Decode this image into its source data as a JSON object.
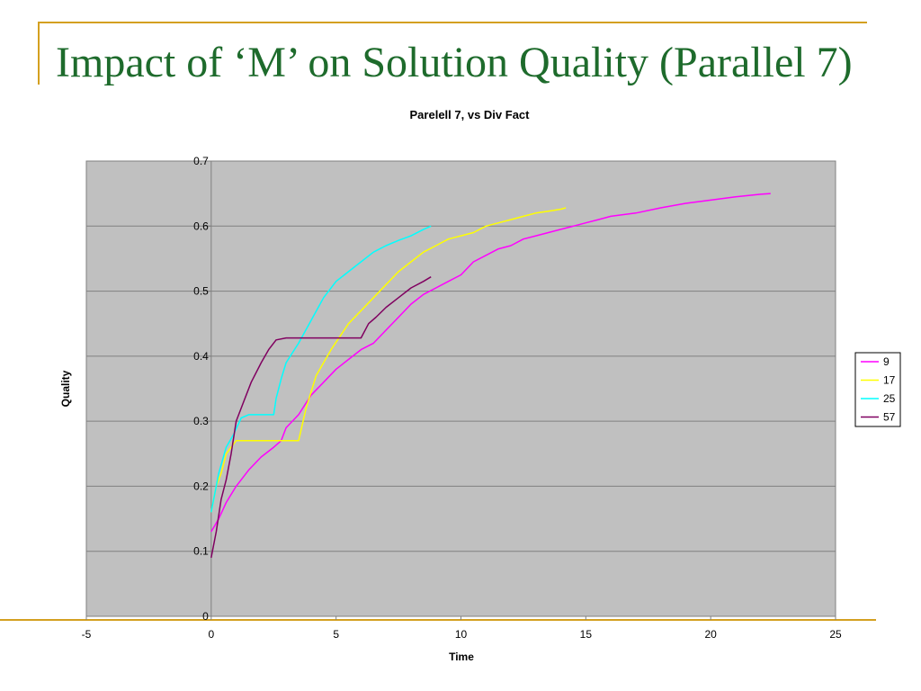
{
  "slide": {
    "title": "Impact of ‘M’ on Solution Quality (Parallel 7)"
  },
  "colors": {
    "accent_rule": "#d4a020",
    "title_text": "#1e6b2c",
    "plot_background": "#c0c0c0"
  },
  "chart_data": {
    "type": "line",
    "title": "Parelell 7, vs Div Fact",
    "xlabel": "Time",
    "ylabel": "Quality",
    "xlim": [
      -5,
      25
    ],
    "ylim": [
      0,
      0.7
    ],
    "x_ticks": [
      -5,
      0,
      5,
      10,
      15,
      20,
      25
    ],
    "y_ticks": [
      0,
      0.1,
      0.2,
      0.3,
      0.4,
      0.5,
      0.6,
      0.7
    ],
    "x_tick_labels": [
      "-5",
      "0",
      "5",
      "10",
      "15",
      "20",
      "25"
    ],
    "y_tick_labels": [
      "0",
      "0.1",
      "0.2",
      "0.3",
      "0.4",
      "0.5",
      "0.6",
      "0.7"
    ],
    "grid": "horizontal",
    "legend_position": "right",
    "series": [
      {
        "name": "9",
        "color": "#ff00ff",
        "x": [
          0,
          0.3,
          0.6,
          1,
          1.5,
          2,
          2.5,
          2.8,
          3,
          3.5,
          4,
          4.5,
          5,
          5.5,
          6,
          6.5,
          7,
          7.5,
          8,
          8.5,
          9,
          9.5,
          10,
          10.5,
          11,
          11.5,
          12,
          12.5,
          13,
          13.5,
          14,
          14.5,
          15,
          15.5,
          16,
          17,
          18,
          19,
          20,
          21,
          22,
          22.4
        ],
        "y": [
          0.13,
          0.15,
          0.175,
          0.2,
          0.225,
          0.245,
          0.26,
          0.27,
          0.29,
          0.31,
          0.34,
          0.36,
          0.38,
          0.395,
          0.41,
          0.42,
          0.44,
          0.46,
          0.48,
          0.495,
          0.505,
          0.515,
          0.525,
          0.545,
          0.555,
          0.565,
          0.57,
          0.58,
          0.585,
          0.59,
          0.595,
          0.6,
          0.605,
          0.61,
          0.615,
          0.62,
          0.628,
          0.635,
          0.64,
          0.645,
          0.649,
          0.65
        ]
      },
      {
        "name": "17",
        "color": "#ffff00",
        "x": [
          0,
          0.2,
          0.4,
          0.6,
          0.8,
          1,
          2,
          3,
          3.5,
          3.8,
          4.2,
          4.8,
          5.5,
          6,
          6.5,
          7,
          7.5,
          8,
          8.5,
          9,
          9.5,
          10,
          10.5,
          11,
          11.5,
          12,
          12.5,
          13,
          13.5,
          14,
          14.2
        ],
        "y": [
          0.16,
          0.2,
          0.22,
          0.25,
          0.26,
          0.27,
          0.27,
          0.27,
          0.27,
          0.32,
          0.37,
          0.41,
          0.45,
          0.47,
          0.49,
          0.51,
          0.53,
          0.545,
          0.56,
          0.57,
          0.58,
          0.585,
          0.59,
          0.6,
          0.605,
          0.61,
          0.615,
          0.62,
          0.623,
          0.626,
          0.628
        ]
      },
      {
        "name": "25",
        "color": "#00ffff",
        "x": [
          0,
          0.3,
          0.6,
          0.9,
          1.2,
          1.5,
          2,
          2.5,
          2.6,
          2.8,
          3,
          3.5,
          4,
          4.5,
          5,
          5.5,
          6,
          6.5,
          7,
          7.5,
          8,
          8.5,
          8.8
        ],
        "y": [
          0.16,
          0.22,
          0.26,
          0.28,
          0.305,
          0.31,
          0.31,
          0.31,
          0.335,
          0.365,
          0.39,
          0.42,
          0.455,
          0.49,
          0.515,
          0.53,
          0.545,
          0.56,
          0.57,
          0.578,
          0.585,
          0.595,
          0.6
        ]
      },
      {
        "name": "57",
        "color": "#800060",
        "x": [
          0,
          0.2,
          0.4,
          0.6,
          0.8,
          1,
          1.3,
          1.6,
          2,
          2.3,
          2.6,
          3,
          4,
          5,
          6,
          6.3,
          6.6,
          7,
          7.5,
          8,
          8.5,
          8.8
        ],
        "y": [
          0.09,
          0.13,
          0.18,
          0.21,
          0.25,
          0.3,
          0.33,
          0.36,
          0.39,
          0.41,
          0.425,
          0.428,
          0.428,
          0.428,
          0.428,
          0.45,
          0.46,
          0.475,
          0.49,
          0.505,
          0.515,
          0.522
        ]
      }
    ]
  }
}
